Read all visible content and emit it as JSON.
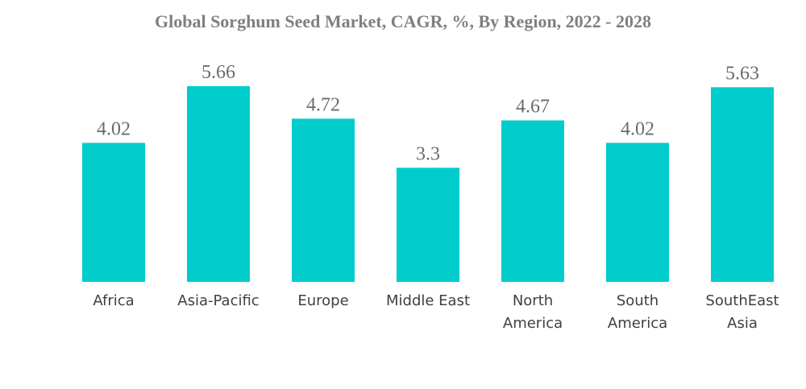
{
  "chart_data": {
    "type": "bar",
    "title": "Global Sorghum Seed Market, CAGR, %, By Region, 2022 - 2028",
    "xlabel": "",
    "ylabel": "",
    "categories": [
      "Africa",
      "Asia-Pacific",
      "Europe",
      "Middle East",
      "North America",
      "South America",
      "SouthEast Asia"
    ],
    "category_lines": [
      [
        "Africa"
      ],
      [
        "Asia-Pacific"
      ],
      [
        "Europe"
      ],
      [
        "Middle East"
      ],
      [
        "North",
        "America"
      ],
      [
        "South",
        "America"
      ],
      [
        "SouthEast",
        "Asia"
      ]
    ],
    "values": [
      4.02,
      5.66,
      4.72,
      3.3,
      4.67,
      4.02,
      5.63
    ],
    "value_labels": [
      "4.02",
      "5.66",
      "4.72",
      "3.3",
      "4.67",
      "4.02",
      "5.63"
    ],
    "ylim": [
      0,
      5.66
    ],
    "grid": false,
    "legend": "none",
    "bar_color": "#00cccc"
  }
}
